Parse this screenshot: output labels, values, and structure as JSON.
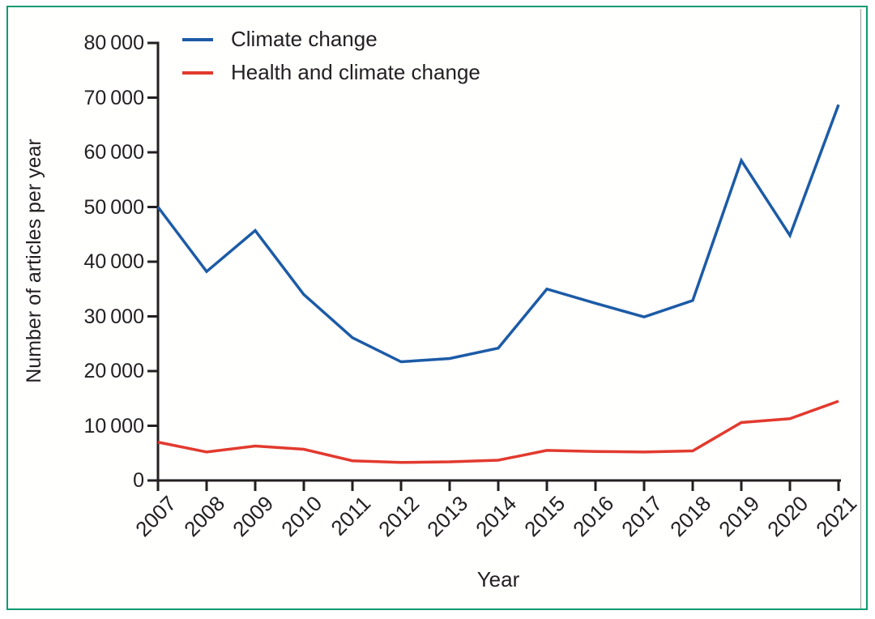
{
  "figure": {
    "background_color": "#fffffe",
    "border_color": "#0d9b70",
    "axis_color": "#231f20",
    "text_color": "#231f20"
  },
  "chart_data": {
    "type": "line",
    "title": "",
    "xlabel": "Year",
    "ylabel": "Number of articles per year",
    "categories": [
      2007,
      2008,
      2009,
      2010,
      2011,
      2012,
      2013,
      2014,
      2015,
      2016,
      2017,
      2018,
      2019,
      2020,
      2021
    ],
    "series": [
      {
        "name": "Climate change",
        "color": "#1c5ba6",
        "values": [
          50000,
          38200,
          45700,
          34000,
          26100,
          21700,
          22300,
          24200,
          35000,
          32400,
          29900,
          32900,
          58500,
          44800,
          68700
        ]
      },
      {
        "name": "Health and climate change",
        "color": "#e23a2e",
        "values": [
          7000,
          5200,
          6300,
          5700,
          3600,
          3300,
          3400,
          3700,
          5500,
          5300,
          5200,
          5400,
          10600,
          11300,
          14500
        ]
      }
    ],
    "ylim": [
      0,
      80000
    ],
    "ytick_step": 10000,
    "ytick_labels": [
      "0",
      "10 000",
      "20 000",
      "30 000",
      "40 000",
      "50 000",
      "60 000",
      "70 000",
      "80 000"
    ],
    "xtick_labels": [
      "2007",
      "2008",
      "2009",
      "2010",
      "2011",
      "2012",
      "2013",
      "2014",
      "2015",
      "2016",
      "2017",
      "2018",
      "2019",
      "2020",
      "2021"
    ],
    "legend_position": "top-left",
    "grid": false
  }
}
